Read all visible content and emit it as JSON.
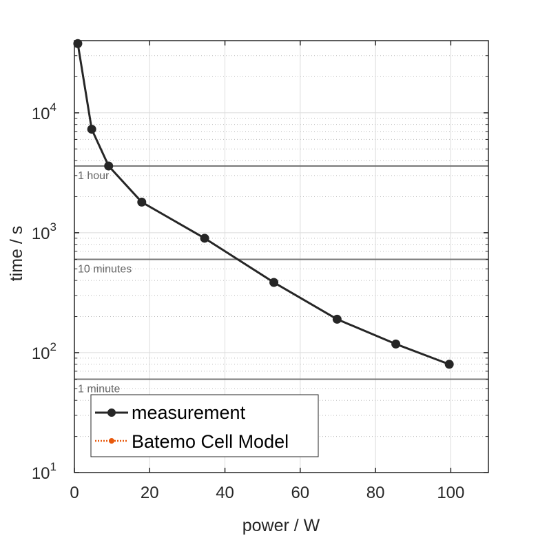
{
  "chart_data": {
    "type": "line",
    "title": "",
    "xlabel": "power / W",
    "ylabel": "time / s",
    "xlim": [
      0,
      110
    ],
    "ylim": [
      10,
      40000
    ],
    "yscale": "log",
    "grid": true,
    "xticks": [
      0,
      20,
      40,
      60,
      80,
      100
    ],
    "xtick_labels": [
      "0",
      "20",
      "40",
      "60",
      "80",
      "100"
    ],
    "yticks": [
      10,
      100,
      1000,
      10000
    ],
    "ytick_labels": [
      {
        "base": "10",
        "exp": "1"
      },
      {
        "base": "10",
        "exp": "2"
      },
      {
        "base": "10",
        "exp": "3"
      },
      {
        "base": "10",
        "exp": "4"
      }
    ],
    "series": [
      {
        "name": "measurement",
        "color": "#262626",
        "x": [
          0.9,
          4.6,
          9.1,
          17.9,
          34.6,
          53.0,
          69.8,
          85.4,
          99.6
        ],
        "y": [
          37800,
          7300,
          3600,
          1800,
          900,
          385,
          190,
          118,
          80
        ]
      },
      {
        "name": "Batemo Cell Model",
        "color": "#e8590c",
        "x": [],
        "y": []
      }
    ],
    "reference_lines": [
      {
        "y": 3600,
        "label": "1 hour"
      },
      {
        "y": 600,
        "label": "10 minutes"
      },
      {
        "y": 60,
        "label": "1 minute"
      }
    ],
    "legend": {
      "placement": "bottom-left",
      "entries": [
        "measurement",
        "Batemo Cell Model"
      ]
    }
  }
}
